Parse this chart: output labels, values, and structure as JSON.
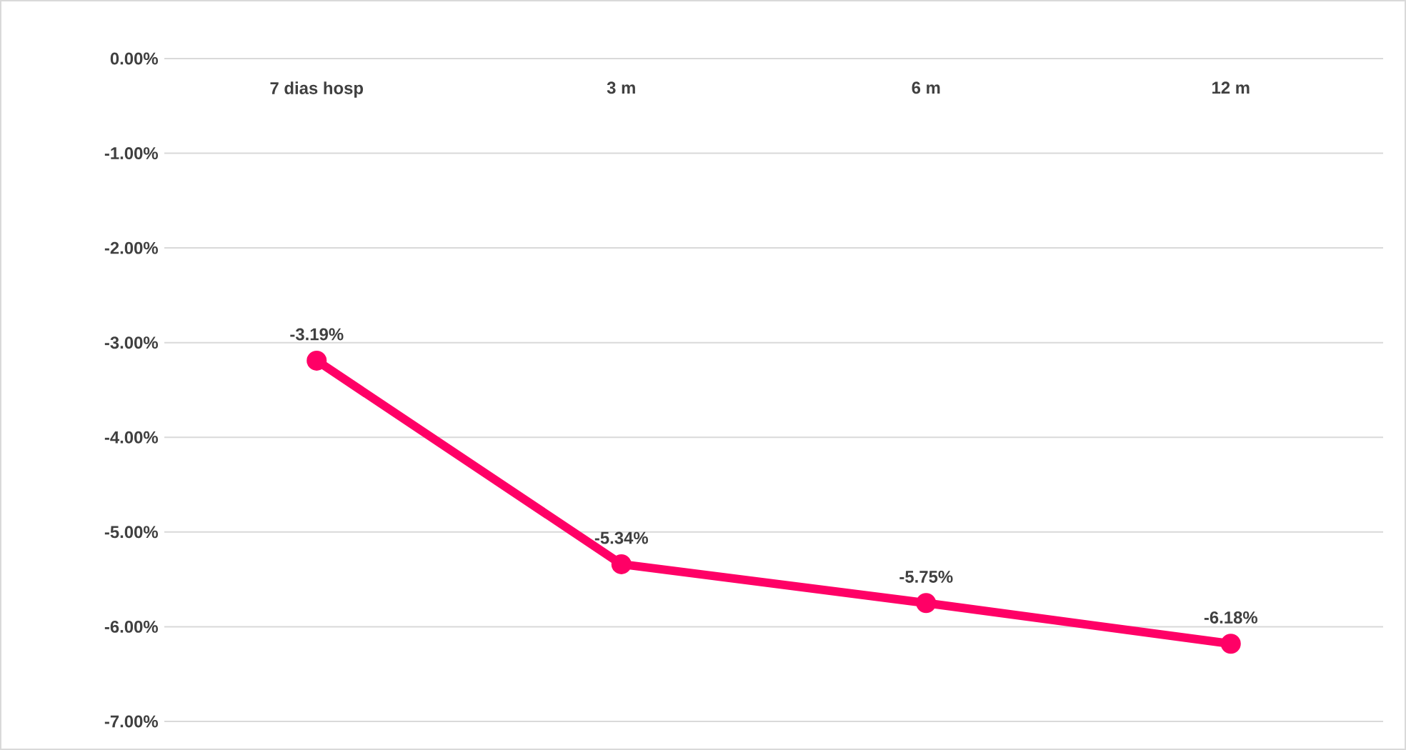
{
  "chart_data": {
    "type": "line",
    "categories": [
      "7 dias hosp",
      "3 m",
      "6 m",
      "12 m"
    ],
    "series": [
      {
        "color": "#ff0066",
        "values": [
          -3.19,
          -5.34,
          -5.75,
          -6.18
        ],
        "value_labels": [
          "-3.19%",
          "-5.34%",
          "-5.75%",
          "-6.18%"
        ]
      }
    ],
    "ylim": [
      -7,
      0
    ],
    "yticks": [
      {
        "value": 0,
        "label": "0.00%"
      },
      {
        "value": -1,
        "label": "-1.00%"
      },
      {
        "value": -2,
        "label": "-2.00%"
      },
      {
        "value": -3,
        "label": "-3.00%"
      },
      {
        "value": -4,
        "label": "-4.00%"
      },
      {
        "value": -5,
        "label": "-5.00%"
      },
      {
        "value": -6,
        "label": "-6.00%"
      },
      {
        "value": -7,
        "label": "-7.00%"
      }
    ],
    "grid": "y",
    "marker": "circle",
    "line_style": "solid"
  }
}
